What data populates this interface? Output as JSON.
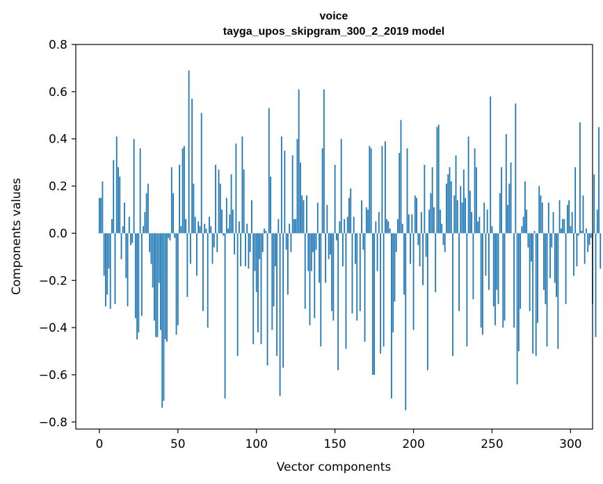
{
  "chart_data": {
    "type": "bar",
    "title": "voice",
    "subtitle": "tayga_upos_skipgram_300_2_2019 model",
    "xlabel": "Vector components",
    "ylabel": "Components values",
    "xlim": [
      -15,
      314
    ],
    "ylim": [
      -0.83,
      0.8
    ],
    "x_ticks": [
      0,
      50,
      100,
      150,
      200,
      250,
      300
    ],
    "y_ticks": [
      -0.8,
      -0.6,
      -0.4,
      -0.2,
      0.0,
      0.2,
      0.4,
      0.6,
      0.8
    ],
    "x_tick_labels": [
      "0",
      "50",
      "100",
      "150",
      "200",
      "250",
      "300"
    ],
    "y_tick_labels": [
      "−0.8",
      "−0.6",
      "−0.4",
      "−0.2",
      "0.0",
      "0.2",
      "0.4",
      "0.6",
      "0.8"
    ],
    "bar_color": "#1f77b4",
    "values": [
      0.15,
      0.15,
      0.22,
      -0.18,
      -0.31,
      -0.26,
      -0.15,
      -0.32,
      0.06,
      0.31,
      -0.3,
      0.41,
      0.28,
      0.24,
      -0.11,
      0.03,
      0.13,
      -0.19,
      -0.31,
      0.07,
      -0.05,
      -0.04,
      0.4,
      -0.36,
      -0.45,
      -0.42,
      0.36,
      -0.35,
      0.03,
      0.09,
      0.17,
      0.21,
      -0.08,
      -0.13,
      -0.23,
      -0.37,
      -0.44,
      -0.44,
      -0.21,
      -0.41,
      -0.74,
      -0.71,
      -0.45,
      -0.46,
      -0.02,
      -0.03,
      0.28,
      0.17,
      -0.02,
      -0.43,
      -0.39,
      0.29,
      0.03,
      0.36,
      0.37,
      0.06,
      -0.27,
      0.69,
      -0.13,
      0.57,
      0.21,
      0.07,
      -0.18,
      0.05,
      0.03,
      0.51,
      -0.33,
      0.04,
      0.02,
      -0.4,
      0.07,
      0.03,
      -0.13,
      -0.06,
      0.29,
      -0.08,
      0.27,
      0.21,
      0.1,
      -0.01,
      -0.7,
      0.15,
      0.02,
      0.08,
      0.25,
      0.1,
      -0.09,
      0.38,
      -0.52,
      0.05,
      -0.14,
      0.41,
      0.27,
      -0.14,
      0.04,
      -0.15,
      -0.08,
      0.14,
      -0.47,
      -0.16,
      -0.25,
      -0.42,
      -0.11,
      -0.47,
      -0.08,
      0.02,
      0.01,
      -0.56,
      0.53,
      0.24,
      -0.41,
      -0.31,
      -0.14,
      -0.52,
      0.06,
      -0.69,
      0.41,
      -0.57,
      0.35,
      -0.07,
      -0.26,
      0.04,
      -0.08,
      0.33,
      0.06,
      0.06,
      0.4,
      0.61,
      0.3,
      0.16,
      0.14,
      -0.32,
      0.16,
      -0.16,
      -0.39,
      -0.16,
      -0.08,
      -0.36,
      -0.07,
      0.13,
      -0.21,
      -0.48,
      0.36,
      0.61,
      -0.21,
      0.12,
      -0.11,
      -0.09,
      -0.33,
      -0.37,
      0.29,
      -0.03,
      -0.58,
      0.05,
      0.4,
      -0.14,
      0.06,
      -0.49,
      0.07,
      0.15,
      0.19,
      -0.34,
      0.07,
      -0.13,
      -0.37,
      0.0,
      -0.33,
      0.14,
      -0.07,
      -0.46,
      0.11,
      0.1,
      0.37,
      0.36,
      -0.6,
      -0.6,
      0.05,
      -0.16,
      0.09,
      -0.51,
      0.37,
      -0.48,
      0.39,
      0.06,
      0.05,
      0.02,
      -0.7,
      -0.42,
      -0.29,
      -0.08,
      0.06,
      0.34,
      0.48,
      0.04,
      -0.26,
      -0.75,
      0.36,
      0.08,
      -0.13,
      0.08,
      -0.41,
      0.16,
      0.15,
      -0.05,
      -0.14,
      0.09,
      -0.22,
      0.29,
      -0.1,
      -0.58,
      0.1,
      0.17,
      0.28,
      0.11,
      -0.25,
      0.45,
      0.46,
      0.1,
      0.04,
      -0.05,
      -0.08,
      0.21,
      0.25,
      0.28,
      0.22,
      -0.52,
      0.16,
      0.33,
      0.14,
      -0.33,
      0.2,
      0.13,
      0.27,
      0.15,
      -0.48,
      0.41,
      0.18,
      0.09,
      -0.28,
      0.36,
      0.28,
      0.05,
      0.07,
      -0.4,
      -0.43,
      0.13,
      -0.18,
      0.1,
      -0.24,
      0.58,
      0.03,
      -0.31,
      -0.39,
      -0.24,
      -0.3,
      0.17,
      0.28,
      -0.4,
      -0.37,
      0.42,
      0.12,
      0.21,
      0.3,
      0.0,
      -0.4,
      0.55,
      -0.64,
      -0.5,
      -0.32,
      0.03,
      0.07,
      0.22,
      0.1,
      -0.06,
      -0.33,
      -0.12,
      -0.51,
      0.01,
      -0.52,
      -0.38,
      0.2,
      0.16,
      0.13,
      -0.24,
      -0.3,
      -0.48,
      0.13,
      -0.19,
      -0.06,
      0.09,
      -0.21,
      -0.27,
      -0.49,
      0.14,
      0.02,
      0.06,
      0.06,
      -0.3,
      0.12,
      0.14,
      0.03,
      0.09,
      -0.18,
      0.28,
      -0.14,
      -0.01,
      0.47,
      0.01,
      0.16,
      -0.13,
      0.02,
      -0.08,
      -0.05,
      -0.02,
      -0.3,
      0.25,
      -0.44,
      0.1,
      0.45,
      -0.15
    ]
  }
}
